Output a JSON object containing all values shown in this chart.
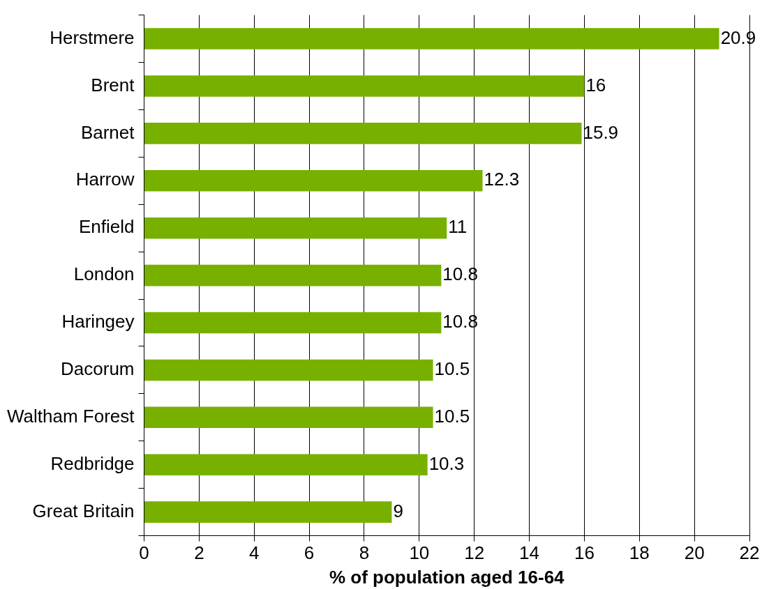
{
  "chart_data": {
    "type": "bar",
    "orientation": "horizontal",
    "xlabel": "% of population aged 16-64",
    "categories": [
      "Herstmere",
      "Brent",
      "Barnet",
      "Harrow",
      "Enfield",
      "London",
      "Haringey",
      "Dacorum",
      "Waltham Forest",
      "Redbridge",
      "Great Britain"
    ],
    "values": [
      20.9,
      16,
      15.9,
      12.3,
      11,
      10.8,
      10.8,
      10.5,
      10.5,
      10.3,
      9
    ],
    "color": "#78b000",
    "xlim": [
      0,
      22
    ],
    "xticks": [
      0,
      2,
      4,
      6,
      8,
      10,
      12,
      14,
      16,
      18,
      20,
      22
    ],
    "grid": "x",
    "data_labels": true,
    "legend": false
  }
}
